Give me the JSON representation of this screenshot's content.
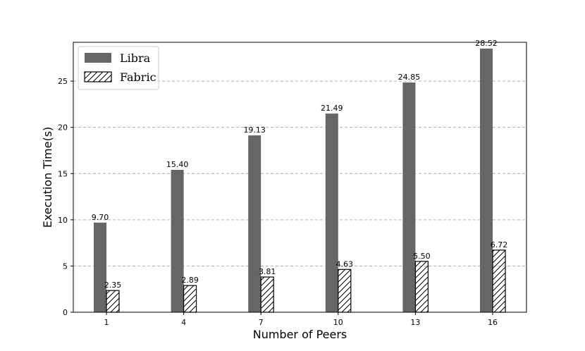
{
  "chart_data": {
    "type": "bar",
    "categories": [
      "1",
      "4",
      "7",
      "10",
      "13",
      "16"
    ],
    "series": [
      {
        "name": "Libra",
        "values": [
          9.7,
          15.4,
          19.13,
          21.49,
          24.85,
          28.52
        ],
        "color": "#666666",
        "pattern": "solid"
      },
      {
        "name": "Fabric",
        "values": [
          2.35,
          2.89,
          3.81,
          4.63,
          5.5,
          6.72
        ],
        "color": "#ffffff",
        "pattern": "hatch"
      }
    ],
    "data_labels": [
      [
        "9.70",
        "15.40",
        "19.13",
        "21.49",
        "24.85",
        "28.52"
      ],
      [
        "2.35",
        "2.89",
        "3.81",
        "4.63",
        "5.50",
        "6.72"
      ]
    ],
    "xlabel": "Number of Peers",
    "ylabel": "Execution Time(s)",
    "ylim": [
      0,
      29.2
    ],
    "yticks": [
      0,
      5,
      10,
      15,
      20,
      25
    ],
    "grid": true,
    "legend_position": "top-left"
  }
}
